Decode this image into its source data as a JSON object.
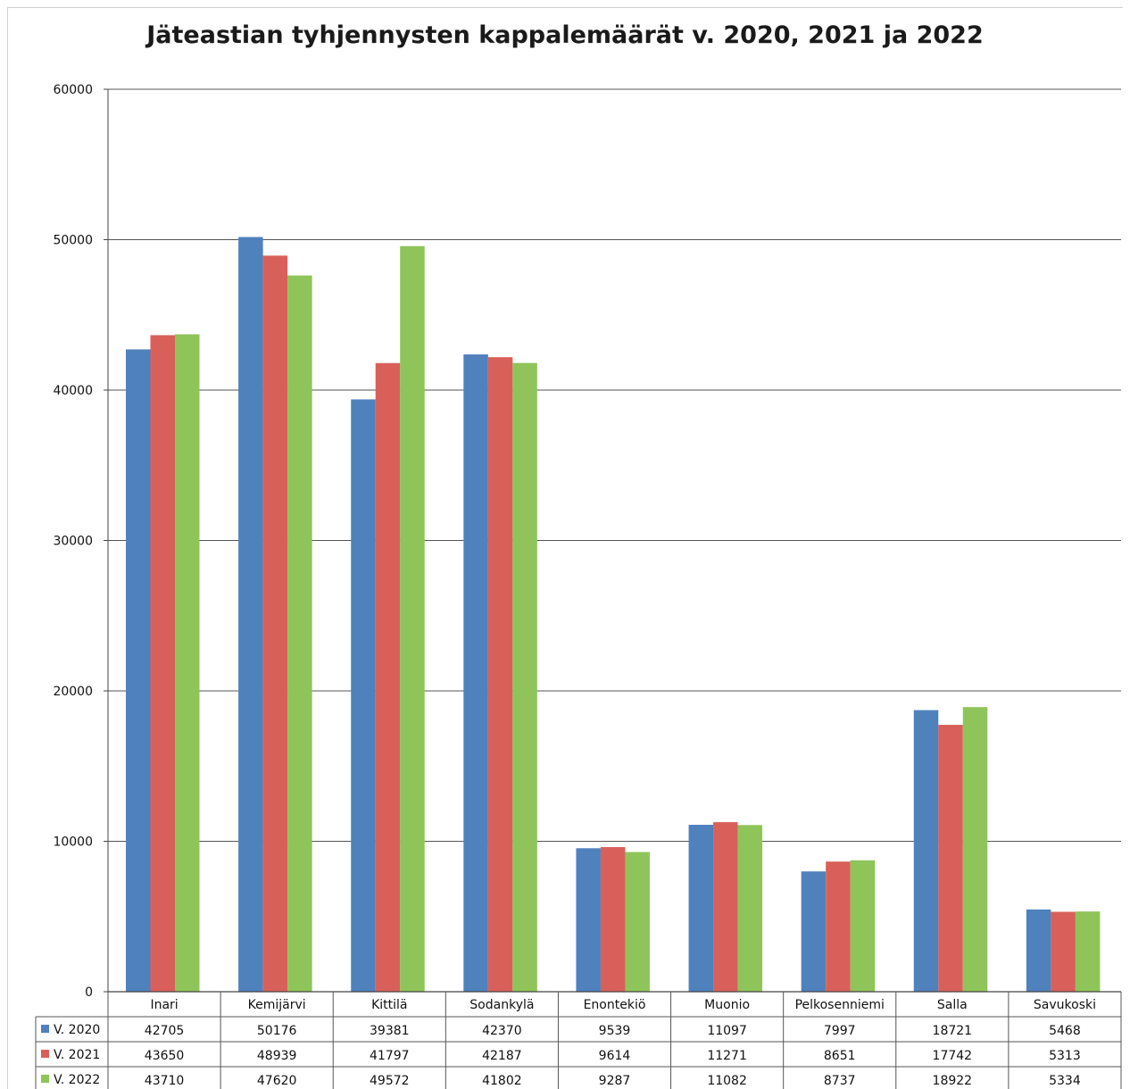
{
  "chart_data": {
    "type": "bar",
    "title": "Jäteastian tyhjennysten kappalemäärät  v. 2020, 2021 ja 2022",
    "xlabel": "",
    "ylabel": "",
    "ylim": [
      0,
      60000
    ],
    "yticks": [
      "0",
      "10000",
      "20000",
      "30000",
      "40000",
      "50000",
      "60000"
    ],
    "grid": true,
    "legend": "data-table-left",
    "categories": [
      "Inari",
      "Kemijärvi",
      "Kittilä",
      "Sodankylä",
      "Enontekiö",
      "Muonio",
      "Pelkosenniemi",
      "Salla",
      "Savukoski"
    ],
    "series": [
      {
        "name": "V. 2020",
        "color": "#4f81bd",
        "values": [
          42705,
          50176,
          39381,
          42370,
          9539,
          11097,
          7997,
          18721,
          5468
        ],
        "labels": [
          "42705",
          "50176",
          "39381",
          "42370",
          "9539",
          "11097",
          "7997",
          "18721",
          "5468"
        ]
      },
      {
        "name": "V. 2021",
        "color": "#d9605a",
        "values": [
          43650,
          48939,
          41797,
          42187,
          9614,
          11271,
          8651,
          17742,
          5313
        ],
        "labels": [
          "43650",
          "48939",
          "41797",
          "42187",
          "9614",
          "11271",
          "8651",
          "17742",
          "5313"
        ]
      },
      {
        "name": "V. 2022",
        "color": "#8fc45a",
        "values": [
          43710,
          47620,
          49572,
          41802,
          9287,
          11082,
          8737,
          18922,
          5334
        ],
        "labels": [
          "43710",
          "47620",
          "49572",
          "41802",
          "9287",
          "11082",
          "8737",
          "18922",
          "5334"
        ]
      }
    ]
  }
}
